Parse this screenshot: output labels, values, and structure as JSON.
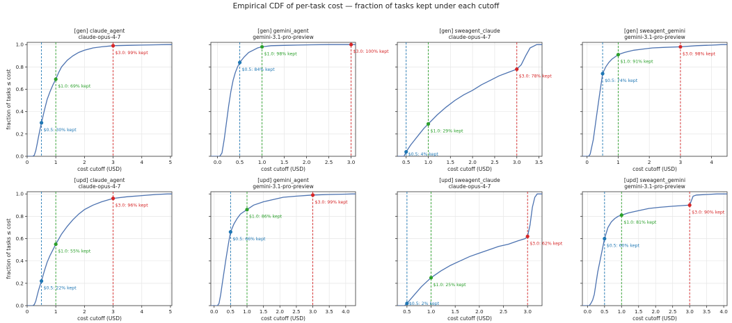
{
  "figure": {
    "title": "Empirical CDF of per-task cost — fraction of tasks kept under each cutoff"
  },
  "colors": {
    "curve": "#4c72b0",
    "cut_0_5": "#1f77b4",
    "cut_1_0": "#2ca02c",
    "cut_3_0": "#d62728",
    "grid": "#e6e6e6"
  },
  "chart_data": [
    {
      "type": "line",
      "title": "[gen] claude_agent",
      "subtitle": "claude-opus-4-7",
      "xlabel": "cost cutoff (USD)",
      "ylabel": "fraction of tasks ≤ cost",
      "xlim": [
        0,
        5.05
      ],
      "ylim": [
        0,
        1.02
      ],
      "xticks": [
        0,
        1,
        2,
        3,
        4,
        5
      ],
      "yticks": [
        0.0,
        0.2,
        0.4,
        0.6,
        0.8,
        1.0
      ],
      "grid": true,
      "series": [
        {
          "x": [
            0.2,
            0.25,
            0.3,
            0.35,
            0.4,
            0.45,
            0.5,
            0.6,
            0.7,
            0.8,
            0.9,
            1.0,
            1.1,
            1.2,
            1.4,
            1.6,
            1.8,
            2.0,
            2.3,
            2.6,
            3.0,
            3.5,
            4.0,
            4.5,
            4.9
          ],
          "y": [
            0.0,
            0.01,
            0.05,
            0.11,
            0.18,
            0.24,
            0.3,
            0.41,
            0.51,
            0.58,
            0.64,
            0.69,
            0.75,
            0.8,
            0.86,
            0.9,
            0.93,
            0.95,
            0.97,
            0.98,
            0.99,
            0.993,
            0.996,
            0.998,
            1.0
          ]
        }
      ],
      "markers": [
        {
          "x": 0.5,
          "y": 0.3,
          "label": "$0.5: 30% kept"
        },
        {
          "x": 1.0,
          "y": 0.69,
          "label": "$1.0: 69% kept"
        },
        {
          "x": 3.0,
          "y": 0.99,
          "label": "$3.0: 99% kept"
        }
      ]
    },
    {
      "type": "line",
      "title": "[gen] gemini_agent",
      "subtitle": "gemini-3.1-pro-preview",
      "xlabel": "cost cutoff (USD)",
      "ylabel": "",
      "xlim": [
        -0.15,
        3.1
      ],
      "ylim": [
        0,
        1.02
      ],
      "xticks": [
        0.0,
        0.5,
        1.0,
        1.5,
        2.0,
        2.5,
        3.0
      ],
      "yticks": [
        0.0,
        0.2,
        0.4,
        0.6,
        0.8,
        1.0
      ],
      "grid": true,
      "series": [
        {
          "x": [
            0.05,
            0.1,
            0.15,
            0.2,
            0.25,
            0.3,
            0.35,
            0.4,
            0.45,
            0.5,
            0.6,
            0.7,
            0.8,
            0.9,
            1.0,
            1.2,
            1.5,
            1.8,
            2.1,
            2.5
          ],
          "y": [
            0.0,
            0.03,
            0.15,
            0.3,
            0.45,
            0.58,
            0.68,
            0.75,
            0.8,
            0.84,
            0.89,
            0.93,
            0.95,
            0.97,
            0.98,
            0.99,
            0.993,
            0.996,
            0.998,
            1.0
          ]
        }
      ],
      "markers": [
        {
          "x": 0.5,
          "y": 0.84,
          "label": "$0.5: 84% kept"
        },
        {
          "x": 1.0,
          "y": 0.98,
          "label": "$1.0: 98% kept"
        },
        {
          "x": 3.0,
          "y": 1.0,
          "label": "$3.0: 100% kept"
        }
      ]
    },
    {
      "type": "line",
      "title": "[gen] sweagent_claude",
      "subtitle": "claude-opus-4-7",
      "xlabel": "cost cutoff (USD)",
      "ylabel": "",
      "xlim": [
        0.3,
        3.57
      ],
      "ylim": [
        0,
        1.02
      ],
      "xticks": [
        0.5,
        1.0,
        1.5,
        2.0,
        2.5,
        3.0,
        3.5
      ],
      "yticks": [
        0.0,
        0.2,
        0.4,
        0.6,
        0.8,
        1.0
      ],
      "grid": true,
      "series": [
        {
          "x": [
            0.45,
            0.5,
            0.6,
            0.7,
            0.8,
            0.9,
            1.0,
            1.2,
            1.4,
            1.6,
            1.8,
            2.0,
            2.2,
            2.4,
            2.6,
            2.8,
            3.0,
            3.1,
            3.2,
            3.3,
            3.4,
            3.45
          ],
          "y": [
            0.0,
            0.04,
            0.1,
            0.15,
            0.2,
            0.25,
            0.29,
            0.37,
            0.44,
            0.5,
            0.55,
            0.59,
            0.64,
            0.68,
            0.72,
            0.75,
            0.78,
            0.82,
            0.9,
            0.97,
            0.99,
            1.0
          ]
        }
      ],
      "markers": [
        {
          "x": 0.5,
          "y": 0.04,
          "label": "$0.5: 4% kept"
        },
        {
          "x": 1.0,
          "y": 0.29,
          "label": "$1.0: 29% kept"
        },
        {
          "x": 3.0,
          "y": 0.78,
          "label": "$3.0: 78% kept"
        }
      ]
    },
    {
      "type": "line",
      "title": "[gen] sweagent_gemini",
      "subtitle": "gemini-3.1-pro-preview",
      "xlabel": "cost cutoff (USD)",
      "ylabel": "",
      "xlim": [
        -0.15,
        4.5
      ],
      "ylim": [
        0,
        1.02
      ],
      "xticks": [
        0,
        1,
        2,
        3,
        4
      ],
      "yticks": [
        0.0,
        0.2,
        0.4,
        0.6,
        0.8,
        1.0
      ],
      "grid": true,
      "series": [
        {
          "x": [
            0.05,
            0.1,
            0.2,
            0.3,
            0.4,
            0.5,
            0.6,
            0.7,
            0.8,
            0.9,
            1.0,
            1.2,
            1.5,
            1.8,
            2.1,
            2.5,
            3.0,
            3.5,
            4.0,
            4.35
          ],
          "y": [
            0.0,
            0.02,
            0.15,
            0.35,
            0.55,
            0.74,
            0.8,
            0.84,
            0.87,
            0.89,
            0.91,
            0.93,
            0.95,
            0.96,
            0.97,
            0.975,
            0.98,
            0.99,
            0.995,
            1.0
          ]
        }
      ],
      "markers": [
        {
          "x": 0.5,
          "y": 0.74,
          "label": "$0.5: 74% kept"
        },
        {
          "x": 1.0,
          "y": 0.91,
          "label": "$1.0: 91% kept"
        },
        {
          "x": 3.0,
          "y": 0.98,
          "label": "$3.0: 98% kept"
        }
      ]
    },
    {
      "type": "line",
      "title": "[upd] claude_agent",
      "subtitle": "claude-opus-4-7",
      "xlabel": "cost cutoff (USD)",
      "ylabel": "fraction of tasks ≤ cost",
      "xlim": [
        0,
        5.05
      ],
      "ylim": [
        0,
        1.02
      ],
      "xticks": [
        0,
        1,
        2,
        3,
        4,
        5
      ],
      "yticks": [
        0.0,
        0.2,
        0.4,
        0.6,
        0.8,
        1.0
      ],
      "grid": true,
      "series": [
        {
          "x": [
            0.2,
            0.25,
            0.3,
            0.35,
            0.4,
            0.45,
            0.5,
            0.6,
            0.7,
            0.8,
            0.9,
            1.0,
            1.2,
            1.4,
            1.6,
            1.8,
            2.0,
            2.3,
            2.6,
            3.0,
            3.5,
            4.0,
            4.5,
            4.9
          ],
          "y": [
            0.0,
            0.01,
            0.04,
            0.09,
            0.14,
            0.18,
            0.22,
            0.31,
            0.39,
            0.45,
            0.5,
            0.55,
            0.64,
            0.71,
            0.77,
            0.82,
            0.86,
            0.9,
            0.93,
            0.96,
            0.975,
            0.985,
            0.995,
            1.0
          ]
        }
      ],
      "markers": [
        {
          "x": 0.5,
          "y": 0.22,
          "label": "$0.5: 22% kept"
        },
        {
          "x": 1.0,
          "y": 0.55,
          "label": "$1.0: 55% kept"
        },
        {
          "x": 3.0,
          "y": 0.96,
          "label": "$3.0: 96% kept"
        }
      ]
    },
    {
      "type": "line",
      "title": "[upd] gemini_agent",
      "subtitle": "gemini-3.1-pro-preview",
      "xlabel": "cost cutoff (USD)",
      "ylabel": "",
      "xlim": [
        -0.1,
        4.3
      ],
      "ylim": [
        0,
        1.02
      ],
      "xticks": [
        0.0,
        0.5,
        1.0,
        1.5,
        2.0,
        2.5,
        3.0,
        3.5,
        4.0
      ],
      "yticks": [
        0.0,
        0.2,
        0.4,
        0.6,
        0.8,
        1.0
      ],
      "grid": true,
      "series": [
        {
          "x": [
            0.1,
            0.15,
            0.2,
            0.25,
            0.3,
            0.35,
            0.4,
            0.45,
            0.5,
            0.6,
            0.7,
            0.8,
            0.9,
            1.0,
            1.2,
            1.5,
            1.8,
            2.1,
            2.5,
            3.0,
            3.5,
            4.0,
            4.2
          ],
          "y": [
            0.0,
            0.02,
            0.1,
            0.2,
            0.3,
            0.4,
            0.49,
            0.58,
            0.66,
            0.73,
            0.78,
            0.82,
            0.84,
            0.86,
            0.9,
            0.93,
            0.95,
            0.97,
            0.98,
            0.99,
            0.995,
            0.998,
            1.0
          ]
        }
      ],
      "markers": [
        {
          "x": 0.5,
          "y": 0.66,
          "label": "$0.5: 66% kept"
        },
        {
          "x": 1.0,
          "y": 0.86,
          "label": "$1.0: 86% kept"
        },
        {
          "x": 3.0,
          "y": 0.99,
          "label": "$3.0: 99% kept"
        }
      ]
    },
    {
      "type": "line",
      "title": "[upd] sweagent_claude",
      "subtitle": "claude-opus-4-7",
      "xlabel": "cost cutoff (USD)",
      "ylabel": "",
      "xlim": [
        0.3,
        3.3
      ],
      "ylim": [
        0,
        1.02
      ],
      "xticks": [
        0.5,
        1.0,
        1.5,
        2.0,
        2.5,
        3.0
      ],
      "yticks": [
        0.0,
        0.2,
        0.4,
        0.6,
        0.8,
        1.0
      ],
      "grid": true,
      "series": [
        {
          "x": [
            0.45,
            0.5,
            0.6,
            0.7,
            0.8,
            0.9,
            1.0,
            1.2,
            1.4,
            1.6,
            1.8,
            2.0,
            2.2,
            2.4,
            2.6,
            2.8,
            2.95,
            3.0,
            3.05,
            3.1,
            3.15,
            3.2
          ],
          "y": [
            0.0,
            0.02,
            0.07,
            0.12,
            0.17,
            0.21,
            0.25,
            0.31,
            0.36,
            0.4,
            0.44,
            0.47,
            0.5,
            0.53,
            0.55,
            0.58,
            0.6,
            0.62,
            0.72,
            0.88,
            0.97,
            1.0
          ]
        }
      ],
      "markers": [
        {
          "x": 0.5,
          "y": 0.02,
          "label": "$0.5: 2% kept"
        },
        {
          "x": 1.0,
          "y": 0.25,
          "label": "$1.0: 25% kept"
        },
        {
          "x": 3.0,
          "y": 0.62,
          "label": "$3.0: 62% kept"
        }
      ]
    },
    {
      "type": "line",
      "title": "[upd] sweagent_gemini",
      "subtitle": "gemini-3.1-pro-preview",
      "xlabel": "cost cutoff (USD)",
      "ylabel": "",
      "xlim": [
        -0.15,
        4.1
      ],
      "ylim": [
        0,
        1.02
      ],
      "xticks": [
        0.0,
        0.5,
        1.0,
        1.5,
        2.0,
        2.5,
        3.0,
        3.5,
        4.0
      ],
      "yticks": [
        0.0,
        0.2,
        0.4,
        0.6,
        0.8,
        1.0
      ],
      "grid": true,
      "series": [
        {
          "x": [
            0.05,
            0.1,
            0.15,
            0.2,
            0.3,
            0.4,
            0.5,
            0.6,
            0.7,
            0.8,
            0.9,
            1.0,
            1.2,
            1.5,
            1.8,
            2.1,
            2.5,
            3.0,
            3.05,
            3.1,
            3.2,
            3.5,
            3.8
          ],
          "y": [
            0.0,
            0.02,
            0.05,
            0.1,
            0.3,
            0.45,
            0.6,
            0.7,
            0.75,
            0.78,
            0.8,
            0.81,
            0.83,
            0.85,
            0.87,
            0.88,
            0.89,
            0.9,
            0.94,
            0.98,
            0.99,
            0.995,
            1.0
          ]
        }
      ],
      "markers": [
        {
          "x": 0.5,
          "y": 0.6,
          "label": "$0.5: 60% kept"
        },
        {
          "x": 1.0,
          "y": 0.81,
          "label": "$1.0: 81% kept"
        },
        {
          "x": 3.0,
          "y": 0.9,
          "label": "$3.0: 90% kept"
        }
      ]
    }
  ]
}
